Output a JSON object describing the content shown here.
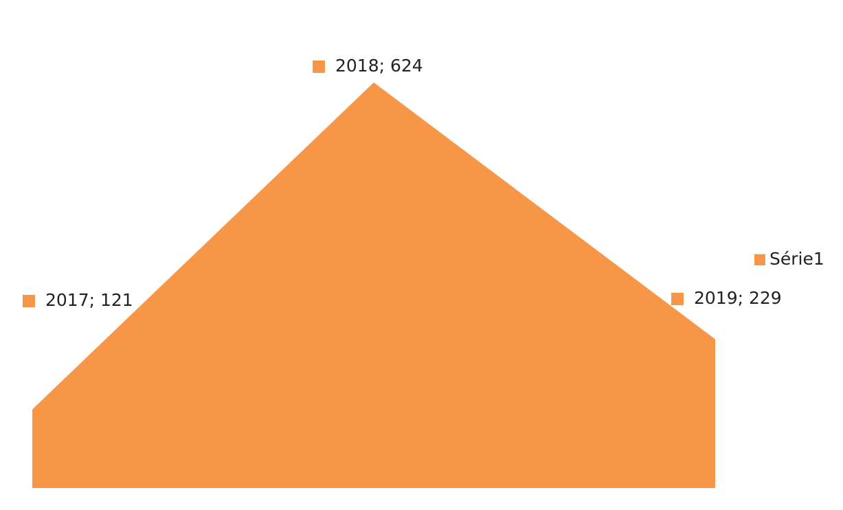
{
  "chart_data": {
    "type": "area",
    "categories": [
      "2017",
      "2018",
      "2019"
    ],
    "series": [
      {
        "name": "Série1",
        "color": "#f79646",
        "values": [
          121,
          624,
          229
        ],
        "value_labels": [
          "2017; 121",
          "2018; 624",
          "2019; 229"
        ]
      }
    ],
    "legend": "right"
  }
}
